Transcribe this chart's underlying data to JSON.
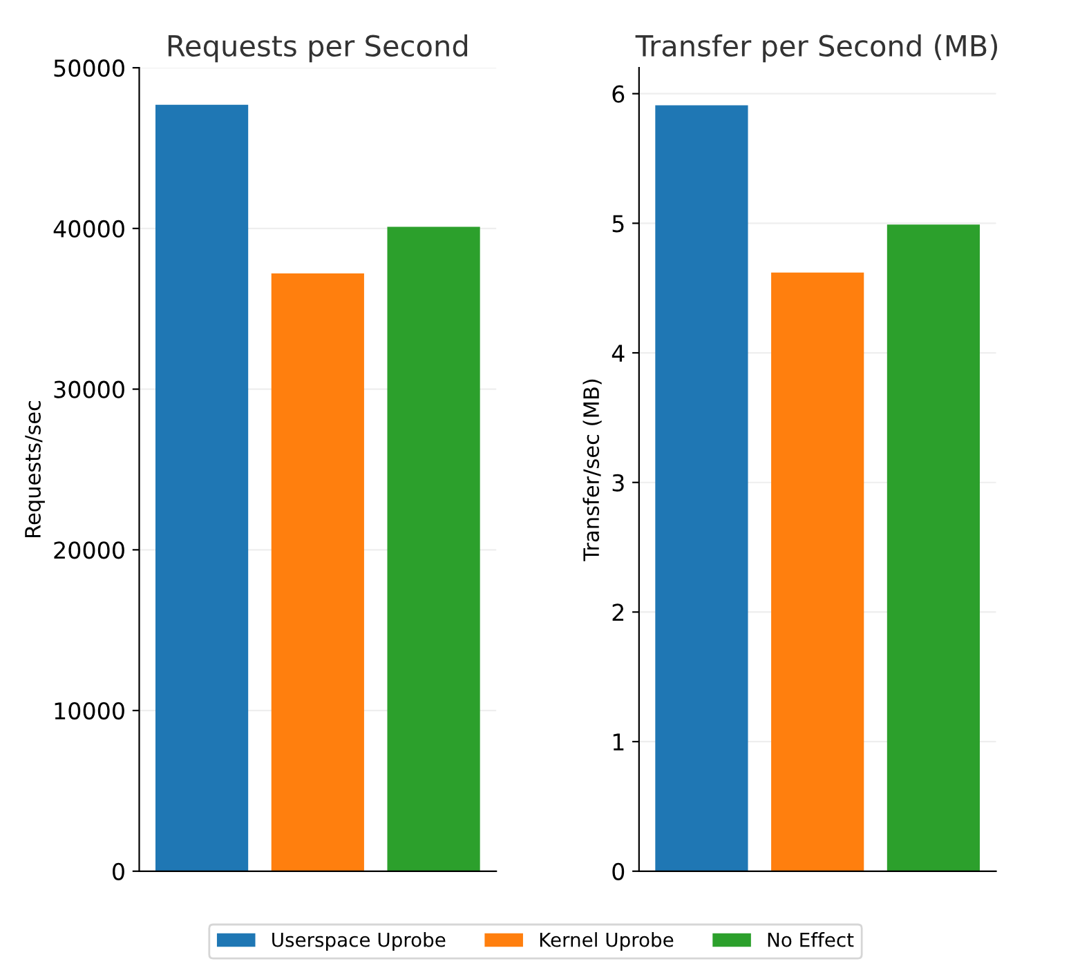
{
  "chart_data": [
    {
      "type": "bar",
      "title": "Requests per Second",
      "ylabel": "Requests/sec",
      "categories": [
        null
      ],
      "series": [
        {
          "name": "Userspace Uprobe",
          "color": "#1f77b4",
          "values": [
            47700
          ]
        },
        {
          "name": "Kernel Uprobe",
          "color": "#ff7f0e",
          "values": [
            37200
          ]
        },
        {
          "name": "No Effect",
          "color": "#2ca02c",
          "values": [
            40100
          ]
        }
      ],
      "ylim": [
        0,
        50000
      ],
      "yticks": [
        0,
        10000,
        20000,
        30000,
        40000,
        50000
      ],
      "grid": "y",
      "legend": "bottom"
    },
    {
      "type": "bar",
      "title": "Transfer per Second (MB)",
      "ylabel": "Transfer/sec (MB)",
      "categories": [
        null
      ],
      "series": [
        {
          "color": "#1f77b4",
          "values": [
            5.91
          ]
        },
        {
          "color": "#ff7f0e",
          "values": [
            4.62
          ]
        },
        {
          "color": "#2ca02c",
          "values": [
            4.99
          ]
        }
      ],
      "ylim": [
        0,
        6.2
      ],
      "yticks": [
        0,
        1,
        2,
        3,
        4,
        5,
        6
      ],
      "grid": "y"
    }
  ]
}
